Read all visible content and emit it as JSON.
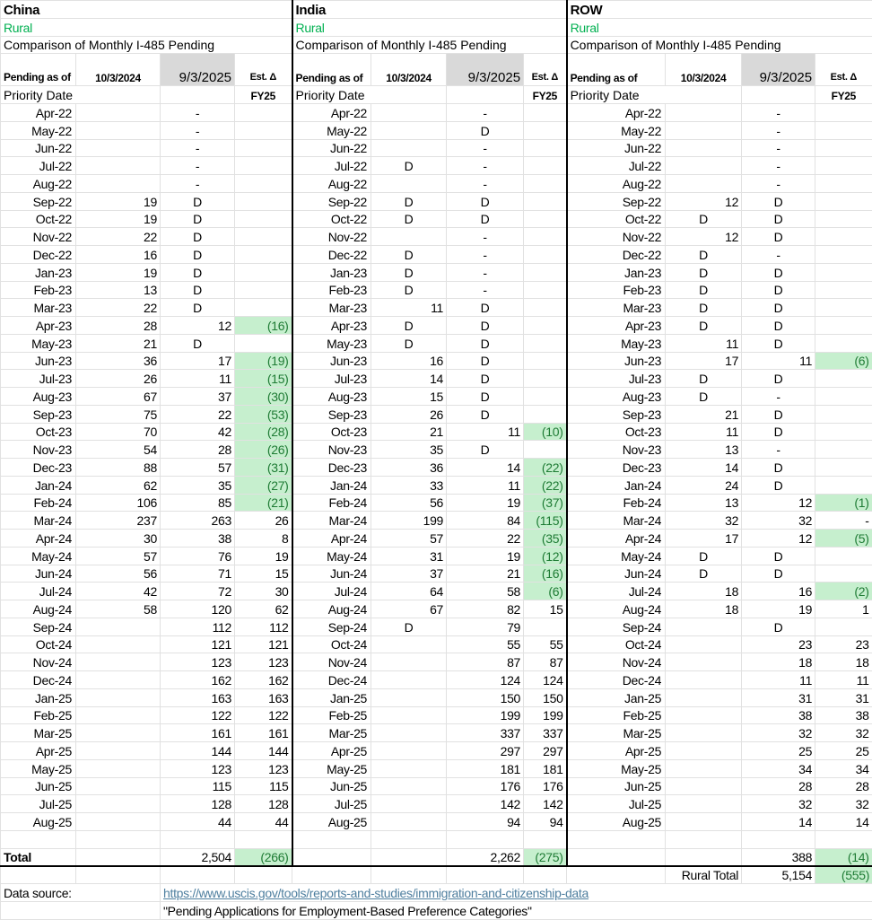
{
  "panels": [
    {
      "name": "China",
      "subtitle": "Rural",
      "heading": "Comparison of Monthly I-485 Pending",
      "col_pending_as_of": "Pending as of",
      "col_date1": "10/3/2024",
      "col_date2": "9/3/2025",
      "col_delta": "Est. Δ",
      "col_delta_sub": "FY25",
      "row_label": "Priority Date",
      "rows": [
        [
          "Apr-22",
          "",
          "-",
          ""
        ],
        [
          "May-22",
          "",
          "-",
          ""
        ],
        [
          "Jun-22",
          "",
          "-",
          ""
        ],
        [
          "Jul-22",
          "",
          "-",
          ""
        ],
        [
          "Aug-22",
          "",
          "-",
          ""
        ],
        [
          "Sep-22",
          "19",
          "D",
          ""
        ],
        [
          "Oct-22",
          "19",
          "D",
          ""
        ],
        [
          "Nov-22",
          "22",
          "D",
          ""
        ],
        [
          "Dec-22",
          "16",
          "D",
          ""
        ],
        [
          "Jan-23",
          "19",
          "D",
          ""
        ],
        [
          "Feb-23",
          "13",
          "D",
          ""
        ],
        [
          "Mar-23",
          "22",
          "D",
          ""
        ],
        [
          "Apr-23",
          "28",
          "12",
          "(16)"
        ],
        [
          "May-23",
          "21",
          "D",
          ""
        ],
        [
          "Jun-23",
          "36",
          "17",
          "(19)"
        ],
        [
          "Jul-23",
          "26",
          "11",
          "(15)"
        ],
        [
          "Aug-23",
          "67",
          "37",
          "(30)"
        ],
        [
          "Sep-23",
          "75",
          "22",
          "(53)"
        ],
        [
          "Oct-23",
          "70",
          "42",
          "(28)"
        ],
        [
          "Nov-23",
          "54",
          "28",
          "(26)"
        ],
        [
          "Dec-23",
          "88",
          "57",
          "(31)"
        ],
        [
          "Jan-24",
          "62",
          "35",
          "(27)"
        ],
        [
          "Feb-24",
          "106",
          "85",
          "(21)"
        ],
        [
          "Mar-24",
          "237",
          "263",
          "26"
        ],
        [
          "Apr-24",
          "30",
          "38",
          "8"
        ],
        [
          "May-24",
          "57",
          "76",
          "19"
        ],
        [
          "Jun-24",
          "56",
          "71",
          "15"
        ],
        [
          "Jul-24",
          "42",
          "72",
          "30"
        ],
        [
          "Aug-24",
          "58",
          "120",
          "62"
        ],
        [
          "Sep-24",
          "",
          "112",
          "112"
        ],
        [
          "Oct-24",
          "",
          "121",
          "121"
        ],
        [
          "Nov-24",
          "",
          "123",
          "123"
        ],
        [
          "Dec-24",
          "",
          "162",
          "162"
        ],
        [
          "Jan-25",
          "",
          "163",
          "163"
        ],
        [
          "Feb-25",
          "",
          "122",
          "122"
        ],
        [
          "Mar-25",
          "",
          "161",
          "161"
        ],
        [
          "Apr-25",
          "",
          "144",
          "144"
        ],
        [
          "May-25",
          "",
          "123",
          "123"
        ],
        [
          "Jun-25",
          "",
          "115",
          "115"
        ],
        [
          "Jul-25",
          "",
          "128",
          "128"
        ],
        [
          "Aug-25",
          "",
          "44",
          "44"
        ]
      ],
      "total_label": "Total",
      "total": "2,504",
      "total_delta": "(266)"
    },
    {
      "name": "India",
      "subtitle": "Rural",
      "heading": "Comparison of Monthly I-485 Pending",
      "col_pending_as_of": "Pending as of",
      "col_date1": "10/3/2024",
      "col_date2": "9/3/2025",
      "col_delta": "Est. Δ",
      "col_delta_sub": "FY25",
      "row_label": "Priority Date",
      "rows": [
        [
          "Apr-22",
          "",
          "-",
          ""
        ],
        [
          "May-22",
          "",
          "D",
          ""
        ],
        [
          "Jun-22",
          "",
          "-",
          ""
        ],
        [
          "Jul-22",
          "D",
          "-",
          ""
        ],
        [
          "Aug-22",
          "",
          "-",
          ""
        ],
        [
          "Sep-22",
          "D",
          "D",
          ""
        ],
        [
          "Oct-22",
          "D",
          "D",
          ""
        ],
        [
          "Nov-22",
          "",
          "-",
          ""
        ],
        [
          "Dec-22",
          "D",
          "-",
          ""
        ],
        [
          "Jan-23",
          "D",
          "-",
          ""
        ],
        [
          "Feb-23",
          "D",
          "-",
          ""
        ],
        [
          "Mar-23",
          "11",
          "D",
          ""
        ],
        [
          "Apr-23",
          "D",
          "D",
          ""
        ],
        [
          "May-23",
          "D",
          "D",
          ""
        ],
        [
          "Jun-23",
          "16",
          "D",
          ""
        ],
        [
          "Jul-23",
          "14",
          "D",
          ""
        ],
        [
          "Aug-23",
          "15",
          "D",
          ""
        ],
        [
          "Sep-23",
          "26",
          "D",
          ""
        ],
        [
          "Oct-23",
          "21",
          "11",
          "(10)"
        ],
        [
          "Nov-23",
          "35",
          "D",
          ""
        ],
        [
          "Dec-23",
          "36",
          "14",
          "(22)"
        ],
        [
          "Jan-24",
          "33",
          "11",
          "(22)"
        ],
        [
          "Feb-24",
          "56",
          "19",
          "(37)"
        ],
        [
          "Mar-24",
          "199",
          "84",
          "(115)"
        ],
        [
          "Apr-24",
          "57",
          "22",
          "(35)"
        ],
        [
          "May-24",
          "31",
          "19",
          "(12)"
        ],
        [
          "Jun-24",
          "37",
          "21",
          "(16)"
        ],
        [
          "Jul-24",
          "64",
          "58",
          "(6)"
        ],
        [
          "Aug-24",
          "67",
          "82",
          "15"
        ],
        [
          "Sep-24",
          "D",
          "79",
          ""
        ],
        [
          "Oct-24",
          "",
          "55",
          "55"
        ],
        [
          "Nov-24",
          "",
          "87",
          "87"
        ],
        [
          "Dec-24",
          "",
          "124",
          "124"
        ],
        [
          "Jan-25",
          "",
          "150",
          "150"
        ],
        [
          "Feb-25",
          "",
          "199",
          "199"
        ],
        [
          "Mar-25",
          "",
          "337",
          "337"
        ],
        [
          "Apr-25",
          "",
          "297",
          "297"
        ],
        [
          "May-25",
          "",
          "181",
          "181"
        ],
        [
          "Jun-25",
          "",
          "176",
          "176"
        ],
        [
          "Jul-25",
          "",
          "142",
          "142"
        ],
        [
          "Aug-25",
          "",
          "94",
          "94"
        ]
      ],
      "total_label": "",
      "total": "2,262",
      "total_delta": "(275)"
    },
    {
      "name": "ROW",
      "subtitle": "Rural",
      "heading": "Comparison of Monthly I-485 Pending",
      "col_pending_as_of": "Pending as of",
      "col_date1": "10/3/2024",
      "col_date2": "9/3/2025",
      "col_delta": "Est. Δ",
      "col_delta_sub": "FY25",
      "row_label": "Priority Date",
      "rows": [
        [
          "Apr-22",
          "",
          "-",
          ""
        ],
        [
          "May-22",
          "",
          "-",
          ""
        ],
        [
          "Jun-22",
          "",
          "-",
          ""
        ],
        [
          "Jul-22",
          "",
          "-",
          ""
        ],
        [
          "Aug-22",
          "",
          "-",
          ""
        ],
        [
          "Sep-22",
          "12",
          "D",
          ""
        ],
        [
          "Oct-22",
          "D",
          "D",
          ""
        ],
        [
          "Nov-22",
          "12",
          "D",
          ""
        ],
        [
          "Dec-22",
          "D",
          "-",
          ""
        ],
        [
          "Jan-23",
          "D",
          "D",
          ""
        ],
        [
          "Feb-23",
          "D",
          "D",
          ""
        ],
        [
          "Mar-23",
          "D",
          "D",
          ""
        ],
        [
          "Apr-23",
          "D",
          "D",
          ""
        ],
        [
          "May-23",
          "11",
          "D",
          ""
        ],
        [
          "Jun-23",
          "17",
          "11",
          "(6)"
        ],
        [
          "Jul-23",
          "D",
          "D",
          ""
        ],
        [
          "Aug-23",
          "D",
          "-",
          ""
        ],
        [
          "Sep-23",
          "21",
          "D",
          ""
        ],
        [
          "Oct-23",
          "11",
          "D",
          ""
        ],
        [
          "Nov-23",
          "13",
          "-",
          ""
        ],
        [
          "Dec-23",
          "14",
          "D",
          ""
        ],
        [
          "Jan-24",
          "24",
          "D",
          ""
        ],
        [
          "Feb-24",
          "13",
          "12",
          "(1)"
        ],
        [
          "Mar-24",
          "32",
          "32",
          "-"
        ],
        [
          "Apr-24",
          "17",
          "12",
          "(5)"
        ],
        [
          "May-24",
          "D",
          "D",
          ""
        ],
        [
          "Jun-24",
          "D",
          "D",
          ""
        ],
        [
          "Jul-24",
          "18",
          "16",
          "(2)"
        ],
        [
          "Aug-24",
          "18",
          "19",
          "1"
        ],
        [
          "Sep-24",
          "",
          "D",
          ""
        ],
        [
          "Oct-24",
          "",
          "23",
          "23"
        ],
        [
          "Nov-24",
          "",
          "18",
          "18"
        ],
        [
          "Dec-24",
          "",
          "11",
          "11"
        ],
        [
          "Jan-25",
          "",
          "31",
          "31"
        ],
        [
          "Feb-25",
          "",
          "38",
          "38"
        ],
        [
          "Mar-25",
          "",
          "32",
          "32"
        ],
        [
          "Apr-25",
          "",
          "25",
          "25"
        ],
        [
          "May-25",
          "",
          "34",
          "34"
        ],
        [
          "Jun-25",
          "",
          "28",
          "28"
        ],
        [
          "Jul-25",
          "",
          "32",
          "32"
        ],
        [
          "Aug-25",
          "",
          "14",
          "14"
        ]
      ],
      "total_label": "",
      "total": "388",
      "total_delta": "(14)"
    }
  ],
  "rural_total": {
    "label": "Rural Total",
    "value": "5,154",
    "delta": "(555)"
  },
  "footer": {
    "source_label": "Data source:",
    "source_url": "https://www.uscis.gov/tools/reports-and-studies/immigration-and-citizenship-data",
    "source_note": "\"Pending Applications for Employment-Based Preference Categories\""
  },
  "colors": {
    "negative_fill": "#c6efce",
    "negative_text": "#1e7b34",
    "rural_text": "#00b050",
    "header_fill": "#d9d9d9"
  }
}
